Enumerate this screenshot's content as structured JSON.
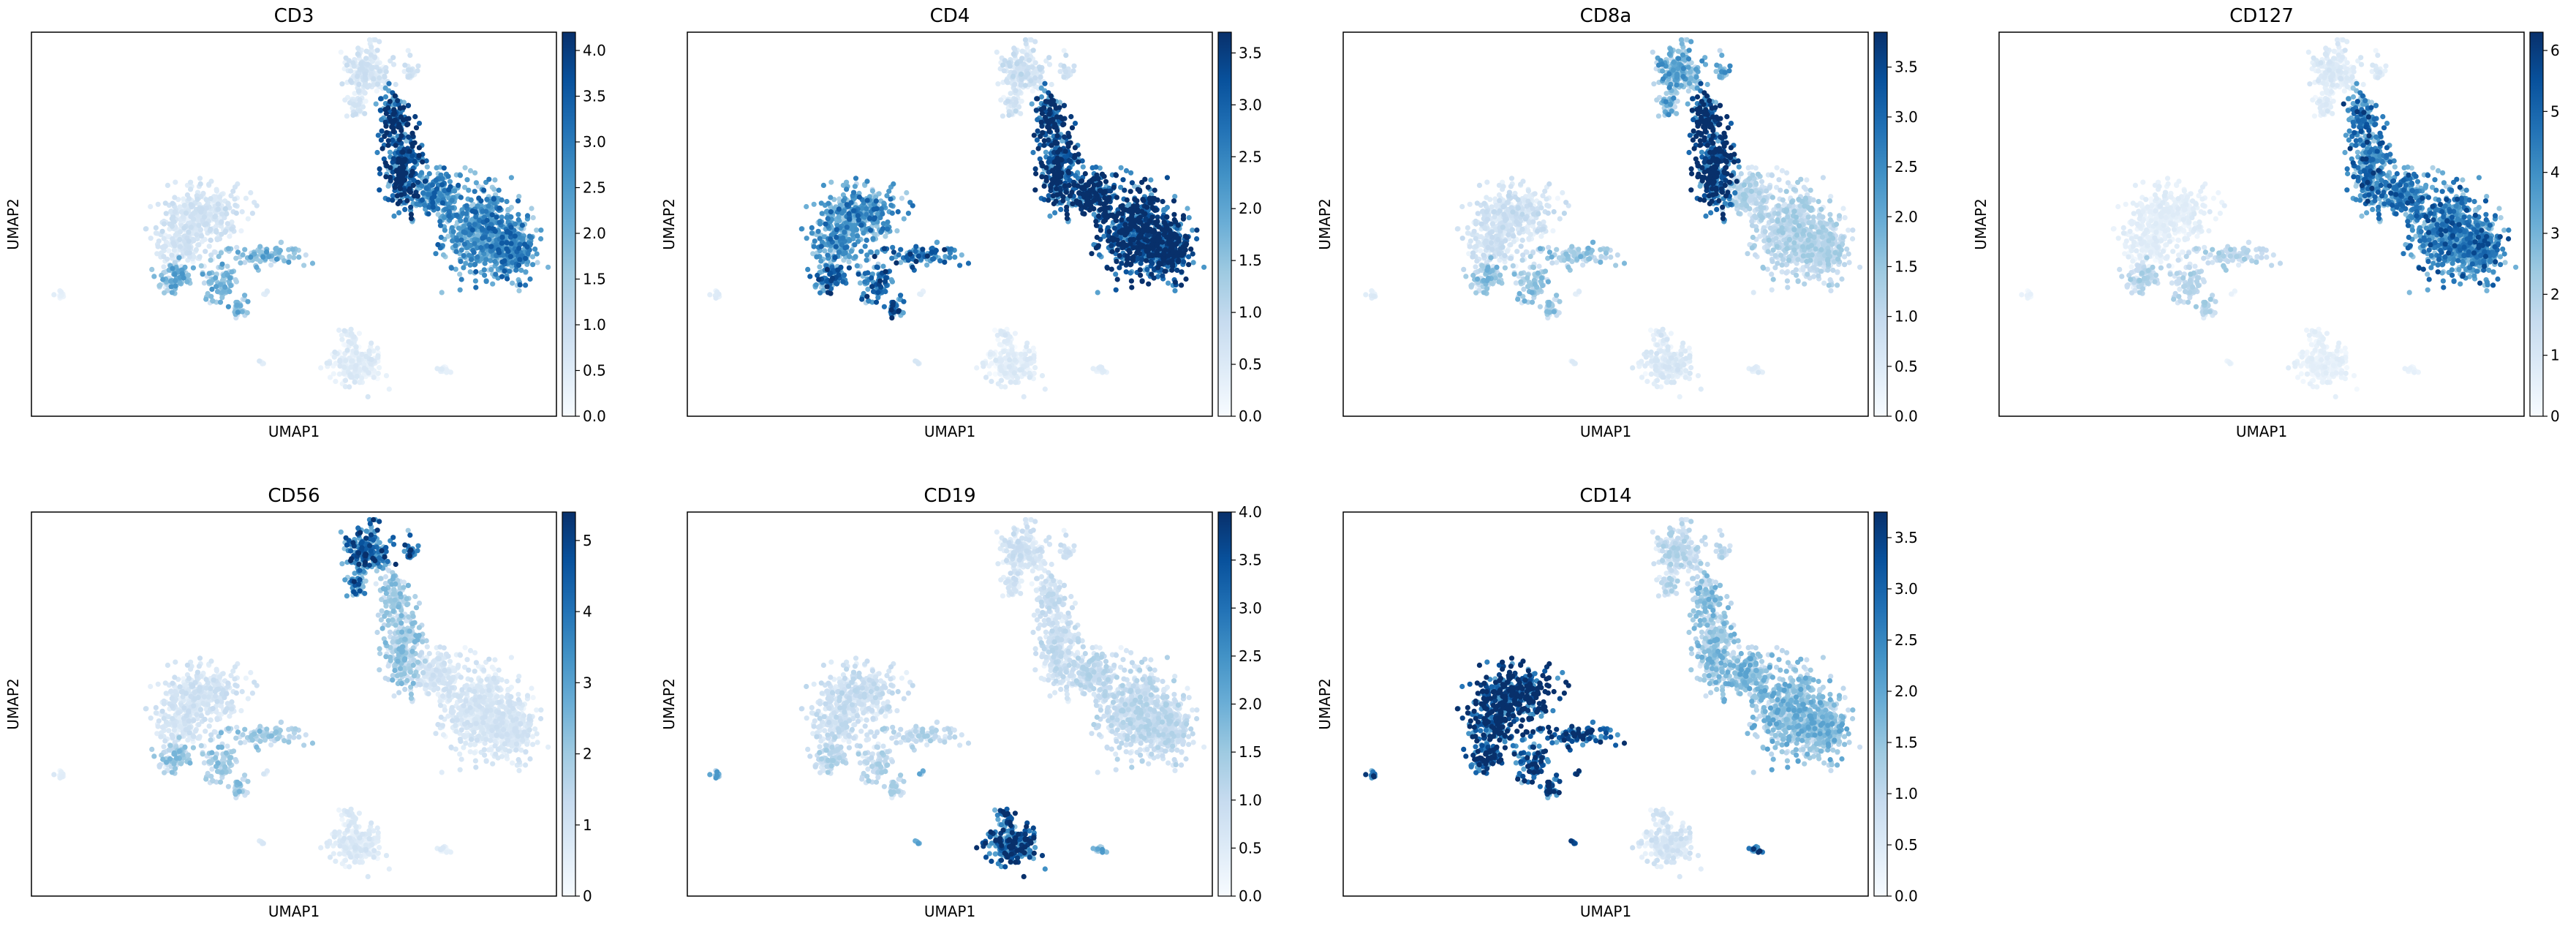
{
  "figure": {
    "colormap": "Blues",
    "colormap_stops": [
      "#f7fbff",
      "#deebf7",
      "#c6dbef",
      "#9ecae1",
      "#6baed6",
      "#4292c6",
      "#2171b5",
      "#08519c",
      "#08306b"
    ]
  },
  "chart_data": [
    {
      "type": "scatter",
      "title": "CD3",
      "xlabel": "UMAP1",
      "ylabel": "UMAP2",
      "grid": false,
      "colorbar": {
        "min": 0.0,
        "max": 4.2,
        "ticks": [
          "0.0",
          "0.5",
          "1.0",
          "1.5",
          "2.0",
          "2.5",
          "3.0",
          "3.5",
          "4.0"
        ]
      },
      "cluster_expression": {
        "monocytes": 0.6,
        "myeloid_arm": 1.6,
        "t_cells": 2.2,
        "t_cells_neck": 3.3,
        "nk_cells": 0.6,
        "b_cells": 0.4,
        "small_clusters": 0.3
      }
    },
    {
      "type": "scatter",
      "title": "CD4",
      "xlabel": "UMAP1",
      "ylabel": "UMAP2",
      "grid": false,
      "colorbar": {
        "min": 0.0,
        "max": 3.7,
        "ticks": [
          "0.0",
          "0.5",
          "1.0",
          "1.5",
          "2.0",
          "2.5",
          "3.0",
          "3.5"
        ]
      },
      "cluster_expression": {
        "monocytes": 1.9,
        "myeloid_arm": 2.4,
        "t_cells": 3.1,
        "t_cells_neck": 3.0,
        "nk_cells": 0.6,
        "b_cells": 0.3,
        "small_clusters": 0.3
      }
    },
    {
      "type": "scatter",
      "title": "CD8a",
      "xlabel": "UMAP1",
      "ylabel": "UMAP2",
      "grid": false,
      "colorbar": {
        "min": 0.0,
        "max": 3.85,
        "ticks": [
          "0.0",
          "0.5",
          "1.0",
          "1.5",
          "2.0",
          "2.5",
          "3.0",
          "3.5"
        ]
      },
      "cluster_expression": {
        "monocytes": 0.6,
        "myeloid_arm": 1.2,
        "t_cells": 0.9,
        "t_cells_neck": 3.4,
        "nk_cells": 1.6,
        "b_cells": 0.4,
        "small_clusters": 0.3
      }
    },
    {
      "type": "scatter",
      "title": "CD127",
      "xlabel": "UMAP1",
      "ylabel": "UMAP2",
      "grid": false,
      "colorbar": {
        "min": 0,
        "max": 6.3,
        "ticks": [
          "0",
          "1",
          "2",
          "3",
          "4",
          "5",
          "6"
        ]
      },
      "cluster_expression": {
        "monocytes": 0.5,
        "myeloid_arm": 1.5,
        "t_cells": 3.6,
        "t_cells_neck": 3.8,
        "nk_cells": 0.7,
        "b_cells": 0.4,
        "small_clusters": 0.3
      }
    },
    {
      "type": "scatter",
      "title": "CD56",
      "xlabel": "UMAP1",
      "ylabel": "UMAP2",
      "grid": false,
      "colorbar": {
        "min": 0,
        "max": 5.4,
        "ticks": [
          "0",
          "1",
          "2",
          "3",
          "4",
          "5"
        ]
      },
      "cluster_expression": {
        "monocytes": 0.8,
        "myeloid_arm": 1.6,
        "t_cells": 0.7,
        "t_cells_neck": 1.6,
        "nk_cells": 3.6,
        "b_cells": 0.6,
        "small_clusters": 0.5
      }
    },
    {
      "type": "scatter",
      "title": "CD19",
      "xlabel": "UMAP1",
      "ylabel": "UMAP2",
      "grid": false,
      "colorbar": {
        "min": 0.0,
        "max": 4.0,
        "ticks": [
          "0.0",
          "0.5",
          "1.0",
          "1.5",
          "2.0",
          "2.5",
          "3.0",
          "3.5",
          "4.0"
        ]
      },
      "cluster_expression": {
        "monocytes": 0.7,
        "myeloid_arm": 0.9,
        "t_cells": 0.8,
        "t_cells_neck": 0.7,
        "nk_cells": 0.6,
        "b_cells": 3.1,
        "small_clusters": 1.5
      }
    },
    {
      "type": "scatter",
      "title": "CD14",
      "xlabel": "UMAP1",
      "ylabel": "UMAP2",
      "grid": false,
      "colorbar": {
        "min": 0.0,
        "max": 3.75,
        "ticks": [
          "0.0",
          "0.5",
          "1.0",
          "1.5",
          "2.0",
          "2.5",
          "3.0",
          "3.5"
        ]
      },
      "cluster_expression": {
        "monocytes": 3.3,
        "myeloid_arm": 2.9,
        "t_cells": 1.3,
        "t_cells_neck": 1.2,
        "nk_cells": 0.8,
        "b_cells": 0.5,
        "small_clusters": 2.5
      }
    }
  ]
}
